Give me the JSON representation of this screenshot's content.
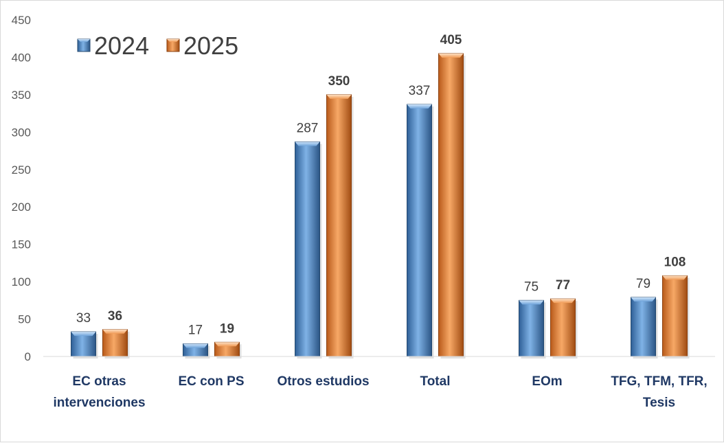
{
  "chart_data": {
    "type": "bar",
    "title": "",
    "xlabel": "",
    "ylabel": "",
    "ylim": [
      0,
      450
    ],
    "yticks": [
      "0",
      "50",
      "100",
      "150",
      "200",
      "250",
      "300",
      "350",
      "400",
      "450"
    ],
    "grid": false,
    "legend_position": "top-left",
    "categories": [
      [
        "EC otras",
        "intervenciones"
      ],
      [
        "EC con PS"
      ],
      [
        "Otros estudios"
      ],
      [
        "Total"
      ],
      [
        "EOm"
      ],
      [
        "TFG, TFM, TFR,",
        "Tesis"
      ]
    ],
    "series": [
      {
        "name": "2024",
        "color": "#4a86c8",
        "values": [
          33,
          17,
          287,
          337,
          75,
          79
        ]
      },
      {
        "name": "2025",
        "color": "#e07a2e",
        "values": [
          36,
          19,
          350,
          405,
          77,
          108
        ]
      }
    ]
  }
}
